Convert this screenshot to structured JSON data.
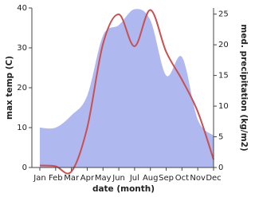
{
  "chart_data": {
    "type": "line",
    "x_label": "date (month)",
    "y_label": "max temp (C)",
    "y2_label": "med. precipitation (kg/m2)",
    "categories": [
      "Jan",
      "Feb",
      "Mar",
      "Apr",
      "May",
      "Jun",
      "Jul",
      "Aug",
      "Sep",
      "Oct",
      "Nov",
      "Dec"
    ],
    "series": [
      {
        "name": "med. precipitation",
        "type": "area",
        "axis": "y2",
        "color": "#b0b8f0",
        "values": [
          6.5,
          6.5,
          8.5,
          11.7,
          21.5,
          23.2,
          25.8,
          24,
          15,
          18,
          7.8,
          5.2
        ]
      },
      {
        "name": "max temp",
        "type": "line",
        "axis": "y",
        "color": "#c85050",
        "values": [
          0.5,
          0.3,
          -1,
          10,
          31,
          38.4,
          30.4,
          39.5,
          29,
          22,
          14,
          2
        ]
      }
    ],
    "ylim": [
      0,
      40
    ],
    "yticks": [
      0,
      10,
      20,
      30,
      40
    ],
    "y2lim": [
      0,
      26
    ],
    "y2ticks": [
      0,
      5,
      10,
      15,
      20,
      25
    ]
  }
}
